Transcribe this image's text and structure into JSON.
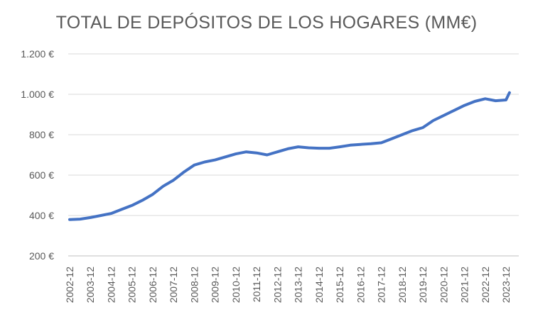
{
  "chart_data": {
    "type": "line",
    "title": "TOTAL DE DEPÓSITOS DE LOS HOGARES (MM€)",
    "xlabel": "",
    "ylabel": "",
    "y_ticks": [
      "200 €",
      "400 €",
      "600 €",
      "800 €",
      "1.000 €",
      "1.200 €"
    ],
    "y_tick_values": [
      200,
      400,
      600,
      800,
      1000,
      1200
    ],
    "ylim": [
      200,
      1200
    ],
    "x_ticks": [
      "2002-12",
      "2003-12",
      "2004-12",
      "2005-12",
      "2006-12",
      "2007-12",
      "2008-12",
      "2009-12",
      "2010-12",
      "2011-12",
      "2012-12",
      "2013-12",
      "2014-12",
      "2015-12",
      "2016-12",
      "2017-12",
      "2018-12",
      "2019-12",
      "2020-12",
      "2021-12",
      "2022-12",
      "2023-12"
    ],
    "grid": "horizontal",
    "line_color": "#4472C4",
    "series": [
      {
        "x": [
          "2002-12",
          "2003-06",
          "2003-12",
          "2004-06",
          "2004-12",
          "2005-06",
          "2005-12",
          "2006-06",
          "2006-12",
          "2007-06",
          "2007-12",
          "2008-06",
          "2008-12",
          "2009-06",
          "2009-12",
          "2010-06",
          "2010-12",
          "2011-06",
          "2011-12",
          "2012-06",
          "2012-12",
          "2013-06",
          "2013-12",
          "2014-06",
          "2014-12",
          "2015-06",
          "2015-12",
          "2016-06",
          "2016-12",
          "2017-06",
          "2017-12",
          "2018-06",
          "2018-12",
          "2019-06",
          "2019-12",
          "2020-06",
          "2020-12",
          "2021-06",
          "2021-12",
          "2022-06",
          "2022-12",
          "2023-06",
          "2023-12",
          "2024-02"
        ],
        "values": [
          380,
          382,
          390,
          400,
          410,
          430,
          450,
          475,
          505,
          545,
          575,
          615,
          650,
          665,
          675,
          690,
          705,
          715,
          710,
          700,
          715,
          730,
          740,
          735,
          733,
          733,
          740,
          748,
          752,
          755,
          760,
          780,
          800,
          820,
          835,
          870,
          895,
          920,
          945,
          965,
          978,
          968,
          972,
          1008
        ]
      }
    ]
  }
}
